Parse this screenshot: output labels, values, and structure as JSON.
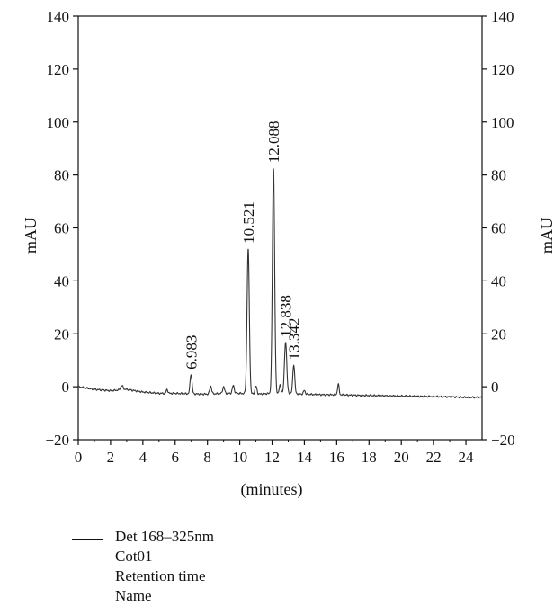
{
  "chart_data": {
    "type": "line",
    "xlabel": "(minutes)",
    "ylabel_left": "mAU",
    "ylabel_right": "mAU",
    "xlim": [
      0,
      25
    ],
    "ylim": [
      -20,
      140
    ],
    "x_ticks": [
      0,
      2,
      4,
      6,
      8,
      10,
      12,
      14,
      16,
      18,
      20,
      22,
      24
    ],
    "y_ticks": [
      -20,
      0,
      20,
      40,
      60,
      80,
      100,
      120,
      140
    ],
    "grid": false,
    "baseline": [
      [
        0,
        0
      ],
      [
        1,
        -1
      ],
      [
        2,
        -1.5
      ],
      [
        3,
        -1
      ],
      [
        4,
        -2
      ],
      [
        5,
        -2.5
      ],
      [
        6,
        -2.5
      ],
      [
        7,
        -2.7
      ],
      [
        8,
        -2.8
      ],
      [
        9,
        -2.5
      ],
      [
        10,
        -2.5
      ],
      [
        11,
        -2.8
      ],
      [
        12,
        -2.5
      ],
      [
        13,
        -2.5
      ],
      [
        14,
        -2.8
      ],
      [
        15,
        -3
      ],
      [
        16,
        -3
      ],
      [
        17,
        -3.2
      ],
      [
        18,
        -3.3
      ],
      [
        19,
        -3.4
      ],
      [
        20,
        -3.5
      ],
      [
        21,
        -3.6
      ],
      [
        22,
        -3.7
      ],
      [
        23,
        -3.8
      ],
      [
        24,
        -4
      ],
      [
        25,
        -4
      ]
    ],
    "peaks": [
      {
        "rt": 2.7,
        "height": 1.5,
        "width": 0.08
      },
      {
        "rt": 5.5,
        "height": 1.5,
        "width": 0.05
      },
      {
        "rt": 6.983,
        "height": 7.5,
        "width": 0.06,
        "label": "6.983"
      },
      {
        "rt": 8.2,
        "height": 3,
        "width": 0.06
      },
      {
        "rt": 9.0,
        "height": 2.5,
        "width": 0.06
      },
      {
        "rt": 9.6,
        "height": 3,
        "width": 0.06
      },
      {
        "rt": 10.521,
        "height": 54.5,
        "width": 0.07,
        "label": "10.521"
      },
      {
        "rt": 11.0,
        "height": 3,
        "width": 0.06
      },
      {
        "rt": 12.088,
        "height": 85,
        "width": 0.07,
        "label": "12.088"
      },
      {
        "rt": 12.5,
        "height": 3,
        "width": 0.06
      },
      {
        "rt": 12.838,
        "height": 19.5,
        "width": 0.07,
        "label": "12.838"
      },
      {
        "rt": 13.342,
        "height": 11,
        "width": 0.06,
        "label": "13.342"
      },
      {
        "rt": 14.0,
        "height": 1.5,
        "width": 0.05
      },
      {
        "rt": 16.1,
        "height": 4,
        "width": 0.05
      }
    ]
  },
  "legend": {
    "lines": [
      "Det 168–325nm",
      "Cot01",
      "Retention time",
      "Name"
    ],
    "line_color": "#111111"
  }
}
